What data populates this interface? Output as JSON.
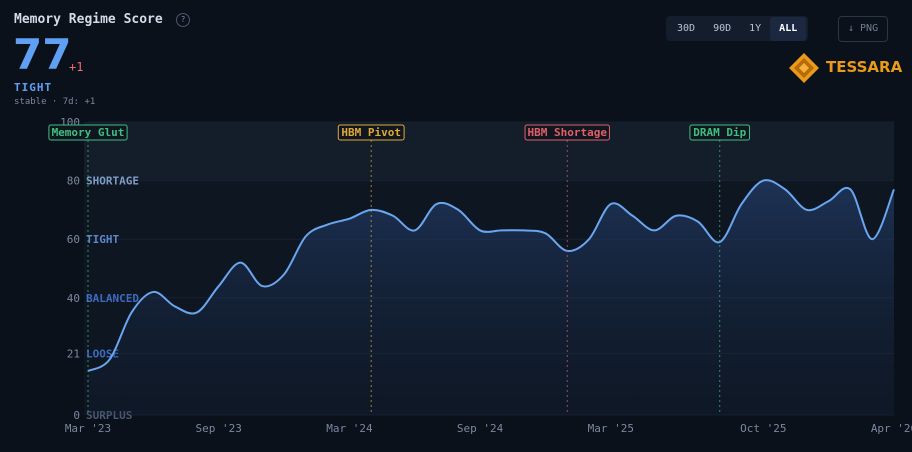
{
  "header": {
    "title": "Memory Regime Score",
    "help": "?",
    "score": "77",
    "delta": "+1",
    "regime": "TIGHT",
    "status": "stable · 7d: +1",
    "ranges": [
      "30D",
      "90D",
      "1Y",
      "ALL"
    ],
    "active_range": "ALL",
    "export": "↓ PNG",
    "logo": "TESSARA"
  },
  "chart_data": {
    "type": "line",
    "x": [
      "2023-03",
      "2023-04",
      "2023-05",
      "2023-06",
      "2023-07",
      "2023-08",
      "2023-09",
      "2023-10",
      "2023-11",
      "2023-12",
      "2024-01",
      "2024-02",
      "2024-03",
      "2024-04",
      "2024-05",
      "2024-06",
      "2024-07",
      "2024-08",
      "2024-09",
      "2024-10",
      "2024-11",
      "2024-12",
      "2025-01",
      "2025-02",
      "2025-03",
      "2025-04",
      "2025-05",
      "2025-06",
      "2025-07",
      "2025-08",
      "2025-09",
      "2025-10",
      "2025-11",
      "2025-12",
      "2026-01",
      "2026-02",
      "2026-03",
      "2026-04"
    ],
    "series": [
      {
        "name": "Memory Regime Score",
        "color": "#6aa6f0",
        "values": [
          15,
          19,
          35,
          42,
          37,
          35,
          44,
          52,
          44,
          48,
          61,
          65,
          67,
          70,
          68,
          63,
          72,
          70,
          63,
          63,
          63,
          62,
          56,
          60,
          72,
          68,
          63,
          68,
          66,
          59,
          72,
          80,
          77,
          70,
          73,
          77,
          60,
          77
        ]
      }
    ],
    "xlim": [
      "2023-03",
      "2026-04"
    ],
    "xticks": [
      {
        "value": "2023-03",
        "label": "Mar '23"
      },
      {
        "value": "2023-09",
        "label": "Sep '23"
      },
      {
        "value": "2024-03",
        "label": "Mar '24"
      },
      {
        "value": "2024-09",
        "label": "Sep '24"
      },
      {
        "value": "2025-03",
        "label": "Mar '25"
      },
      {
        "value": "2025-10",
        "label": "Oct '25"
      },
      {
        "value": "2026-04",
        "label": "Apr '26"
      }
    ],
    "ylim": [
      0,
      100
    ],
    "yticks": [
      0,
      21,
      40,
      60,
      80,
      100
    ],
    "zone_labels": [
      {
        "value": 0,
        "label": "SURPLUS",
        "color": "#4a5a72"
      },
      {
        "value": 21,
        "label": "LOOSE",
        "color": "#3d6ac0"
      },
      {
        "value": 40,
        "label": "BALANCED",
        "color": "#3d6ac0"
      },
      {
        "value": 60,
        "label": "TIGHT",
        "color": "#5d86c8"
      },
      {
        "value": 80,
        "label": "SHORTAGE",
        "color": "#7f9cc4"
      }
    ],
    "events": [
      {
        "x": "2023-03",
        "label": "Memory Glut",
        "color": "#3fbf7f"
      },
      {
        "x": "2024-04",
        "label": "HBM Pivot",
        "color": "#e0a93a"
      },
      {
        "x": "2025-01",
        "label": "HBM Shortage",
        "color": "#e0606a"
      },
      {
        "x": "2025-08",
        "label": "DRAM Dip",
        "color": "#3fbf7f"
      }
    ]
  }
}
